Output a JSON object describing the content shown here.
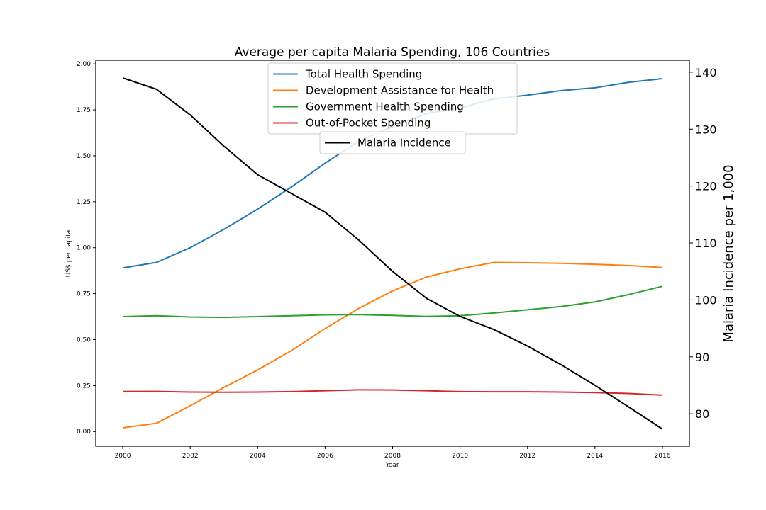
{
  "chart_data": {
    "type": "line",
    "title": "Average per capita Malaria Spending, 106 Countries",
    "xlabel": "Year",
    "ylabel_left": "US$ per capita",
    "ylabel_right": "Malaria Incidence per 1,000",
    "x": [
      2000,
      2001,
      2002,
      2003,
      2004,
      2005,
      2006,
      2007,
      2008,
      2009,
      2010,
      2011,
      2012,
      2013,
      2014,
      2015,
      2016
    ],
    "xlim": [
      1999.2,
      2016.8
    ],
    "xticks": [
      "2000",
      "2002",
      "2004",
      "2006",
      "2008",
      "2010",
      "2012",
      "2014",
      "2016"
    ],
    "ylim_left": [
      -0.08,
      2.02
    ],
    "yticks_left": [
      "0.00",
      "0.25",
      "0.50",
      "0.75",
      "1.00",
      "1.25",
      "1.50",
      "1.75",
      "2.00"
    ],
    "ylim_right": [
      74.3,
      142.1
    ],
    "yticks_right": [
      "80",
      "90",
      "100",
      "110",
      "120",
      "130",
      "140"
    ],
    "legend_left_axis_position": "upper center",
    "legend_right_axis_position": "upper center",
    "series": [
      {
        "name": "Total Health Spending",
        "axis": "left",
        "color": "#1f77b4",
        "values": [
          0.89,
          0.92,
          1.0,
          1.1,
          1.21,
          1.33,
          1.46,
          1.58,
          1.66,
          1.73,
          1.76,
          1.81,
          1.83,
          1.855,
          1.87,
          1.9,
          1.92
        ]
      },
      {
        "name": "Development Assistance for Health",
        "axis": "left",
        "color": "#ff7f0e",
        "values": [
          0.02,
          0.045,
          0.14,
          0.24,
          0.335,
          0.44,
          0.56,
          0.67,
          0.765,
          0.84,
          0.885,
          0.92,
          0.918,
          0.915,
          0.91,
          0.903,
          0.892
        ]
      },
      {
        "name": "Government Health Spending",
        "axis": "left",
        "color": "#2ca02c",
        "values": [
          0.625,
          0.63,
          0.623,
          0.621,
          0.625,
          0.63,
          0.635,
          0.636,
          0.632,
          0.626,
          0.63,
          0.645,
          0.662,
          0.68,
          0.705,
          0.745,
          0.79
        ]
      },
      {
        "name": "Out-of-Pocket Spending",
        "axis": "left",
        "color": "#d62728",
        "values": [
          0.218,
          0.218,
          0.215,
          0.214,
          0.215,
          0.217,
          0.222,
          0.227,
          0.226,
          0.222,
          0.217,
          0.216,
          0.216,
          0.215,
          0.212,
          0.207,
          0.198
        ]
      },
      {
        "name": "Malaria Incidence",
        "axis": "right",
        "color": "#000000",
        "values": [
          139.0,
          137.0,
          132.5,
          127.0,
          122.0,
          118.7,
          115.4,
          110.5,
          105.0,
          100.3,
          97.1,
          94.8,
          91.9,
          88.6,
          85.0,
          81.2,
          77.3
        ]
      }
    ]
  }
}
